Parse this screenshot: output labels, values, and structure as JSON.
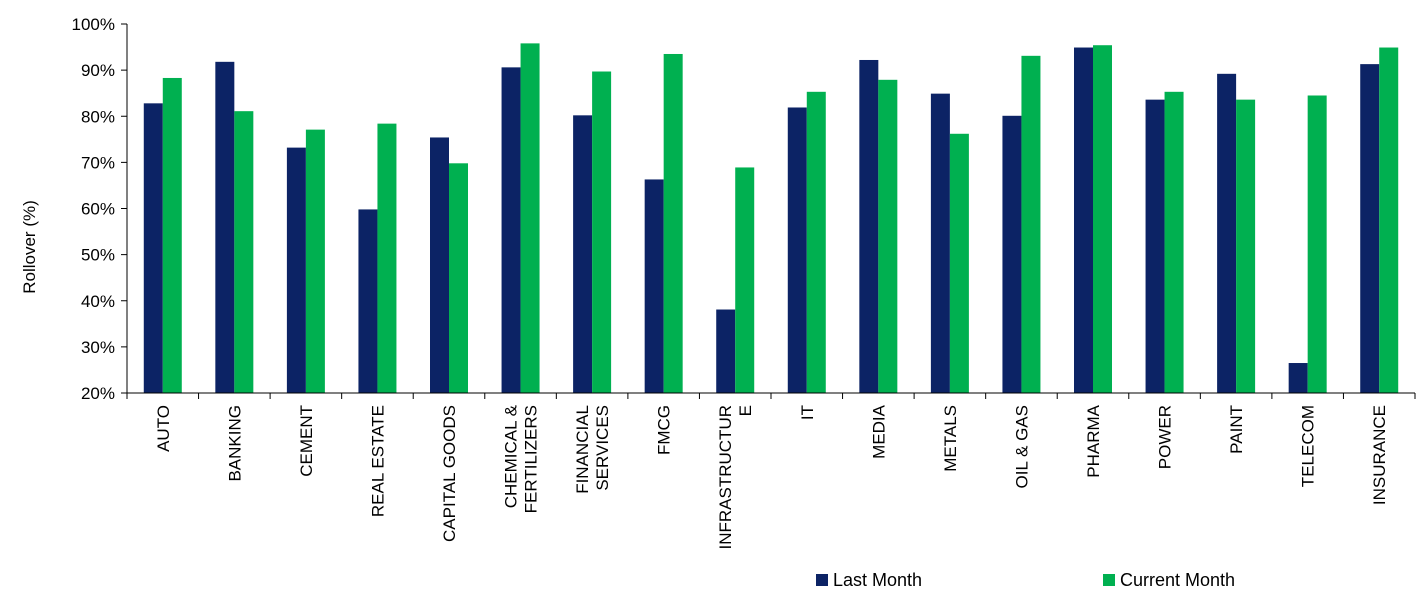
{
  "chart_data": {
    "type": "bar",
    "categories": [
      [
        "AUTO"
      ],
      [
        "BANKING"
      ],
      [
        "CEMENT"
      ],
      [
        "REAL ESTATE"
      ],
      [
        "CAPITAL GOODS"
      ],
      [
        "CHEMICAL &",
        "FERTILIZERS"
      ],
      [
        "FINANCIAL",
        "SERVICES"
      ],
      [
        "FMCG"
      ],
      [
        "INFRASTRUCTUR",
        "E"
      ],
      [
        "IT"
      ],
      [
        "MEDIA"
      ],
      [
        "METALS"
      ],
      [
        "OIL & GAS"
      ],
      [
        "PHARMA"
      ],
      [
        "POWER"
      ],
      [
        "PAINT"
      ],
      [
        "TELECOM"
      ],
      [
        "INSURANCE"
      ]
    ],
    "series": [
      {
        "name": "Last Month",
        "color": "#0c2365",
        "values": [
          82.8,
          91.8,
          73.2,
          59.8,
          75.4,
          90.6,
          80.2,
          66.3,
          38.1,
          81.9,
          92.2,
          84.9,
          80.1,
          94.9,
          83.6,
          89.2,
          26.5,
          91.3
        ]
      },
      {
        "name": "Current Month",
        "color": "#00b050",
        "values": [
          88.3,
          81.1,
          77.1,
          78.4,
          69.8,
          95.8,
          89.7,
          93.5,
          68.9,
          85.3,
          87.9,
          76.2,
          93.1,
          95.4,
          85.3,
          83.6,
          84.5,
          94.9
        ]
      }
    ],
    "ylabel": "Rollover (%)",
    "ylim": [
      20,
      100
    ],
    "yticks": [
      20,
      30,
      40,
      50,
      60,
      70,
      80,
      90,
      100
    ],
    "ytick_suffix": "%",
    "grid": false,
    "legend_position": "bottom"
  }
}
